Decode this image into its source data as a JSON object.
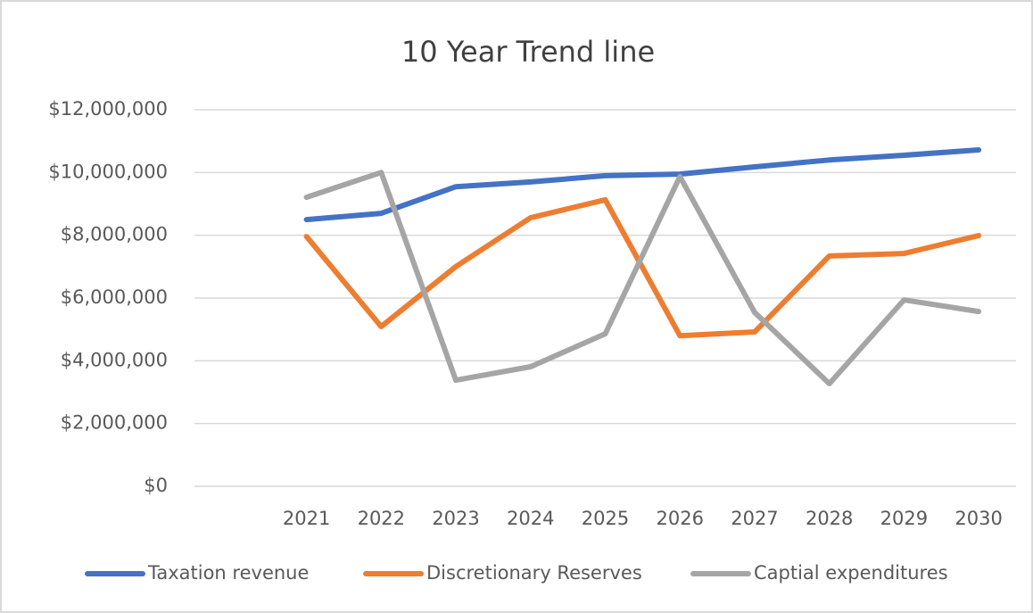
{
  "chart_data": {
    "type": "line",
    "title": "10 Year Trend line",
    "categories": [
      null,
      "2021",
      "2022",
      "2023",
      "2024",
      "2025",
      "2026",
      "2027",
      "2028",
      "2029",
      "2030"
    ],
    "series": [
      {
        "name": "Taxation revenue",
        "color": "#4472c4",
        "values": [
          null,
          8500000,
          8700000,
          9550000,
          9700000,
          9900000,
          9950000,
          10180000,
          10400000,
          10550000,
          10720000
        ]
      },
      {
        "name": "Discretionary Reserves",
        "color": "#ed7d31",
        "values": [
          null,
          7960000,
          5090000,
          7000000,
          8560000,
          9130000,
          4800000,
          4920000,
          7340000,
          7420000,
          7990000
        ]
      },
      {
        "name": "Captial expenditures",
        "color": "#a5a5a5",
        "values": [
          null,
          9210000,
          10000000,
          3380000,
          3810000,
          4860000,
          9870000,
          5540000,
          3270000,
          5940000,
          5570000
        ]
      }
    ],
    "ylim": [
      0,
      12000000
    ],
    "yticks": [
      {
        "value": 0,
        "label": "$0"
      },
      {
        "value": 2000000,
        "label": "$2,000,000"
      },
      {
        "value": 4000000,
        "label": "$4,000,000"
      },
      {
        "value": 6000000,
        "label": "$6,000,000"
      },
      {
        "value": 8000000,
        "label": "$8,000,000"
      },
      {
        "value": 10000000,
        "label": "$10,000,000"
      },
      {
        "value": 12000000,
        "label": "$12,000,000"
      }
    ],
    "grid": true,
    "legend": "bottom"
  }
}
